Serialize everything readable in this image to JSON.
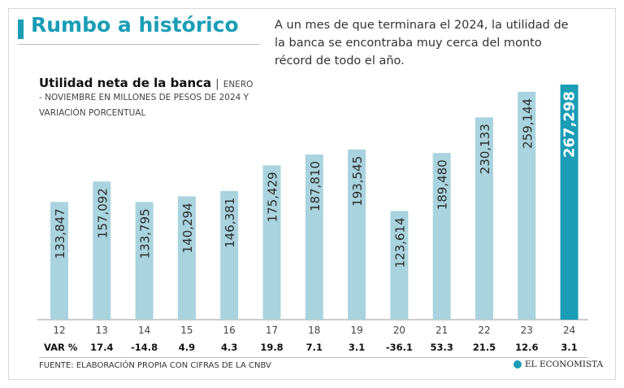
{
  "header": {
    "title": "Rumbo a histórico",
    "intro": "A un mes de que terminara el 2024, la utilidad de la banca se encontraba muy cerca del monto récord de todo el año."
  },
  "chart_head": {
    "title": "Utilidad neta de la banca",
    "separator": "|",
    "subtitle_part1": "ENERO",
    "subtitle_part2": "- NOVIEMBRE EN MILLONES DE PESOS DE 2024 Y",
    "subtitle_part3": "VARIACIÓN PORCENTUAL"
  },
  "var_label": "VAR %",
  "footer": {
    "source": "FUENTE: ELABORACIÓN PROPIA CON CIFRAS DE LA CNBV",
    "brand": "EL ECONOMISTA"
  },
  "colors": {
    "bar": "#a9d3de",
    "highlight": "#1a9db5",
    "title": "#1a9db5"
  },
  "chart_data": {
    "type": "bar",
    "title": "Utilidad neta de la banca",
    "subtitle": "ENERO - NOVIEMBRE EN MILLONES DE PESOS DE 2024 Y VARIACIÓN PORCENTUAL",
    "categories": [
      "12",
      "13",
      "14",
      "15",
      "16",
      "17",
      "18",
      "19",
      "20",
      "21",
      "22",
      "23",
      "24"
    ],
    "values": [
      133847,
      157092,
      133795,
      140294,
      146381,
      175429,
      187810,
      193545,
      123614,
      189480,
      230133,
      259144,
      267298
    ],
    "value_labels": [
      "133,847",
      "157,092",
      "133,795",
      "140,294",
      "146,381",
      "175,429",
      "187,810",
      "193,545",
      "123,614",
      "189,480",
      "230,133",
      "259,144",
      "267,298"
    ],
    "variation": [
      "",
      "17.4",
      "-14.8",
      "4.9",
      "4.3",
      "19.8",
      "7.1",
      "3.1",
      "-36.1",
      "53.3",
      "21.5",
      "12.6",
      "3.1"
    ],
    "highlight_index": 12,
    "ylim": [
      0,
      267298
    ],
    "grid": false,
    "legend": "none"
  }
}
